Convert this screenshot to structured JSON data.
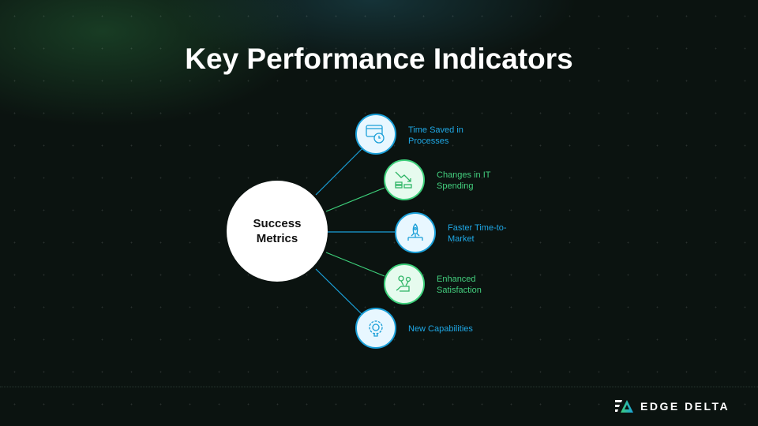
{
  "title": "Key Performance Indicators",
  "center": {
    "line1": "Success",
    "line2": "Metrics"
  },
  "colors": {
    "blue": "#1a9fd8",
    "green": "#3dcf7a"
  },
  "items": [
    {
      "line1": "Time Saved in",
      "line2": "Processes",
      "icon": "browser-clock-icon",
      "color": "blue"
    },
    {
      "line1": "Changes in IT",
      "line2": "Spending",
      "icon": "coins-down-trend-icon",
      "color": "green"
    },
    {
      "line1": "Faster Time-to-",
      "line2": "Market",
      "icon": "rocket-icon",
      "color": "blue"
    },
    {
      "line1": "Enhanced",
      "line2": "Satisfaction",
      "icon": "hand-flowers-icon",
      "color": "green"
    },
    {
      "line1": "New Capabilities",
      "line2": "",
      "icon": "gear-bulb-icon",
      "color": "blue"
    }
  ],
  "brand": "EDGE DELTA"
}
